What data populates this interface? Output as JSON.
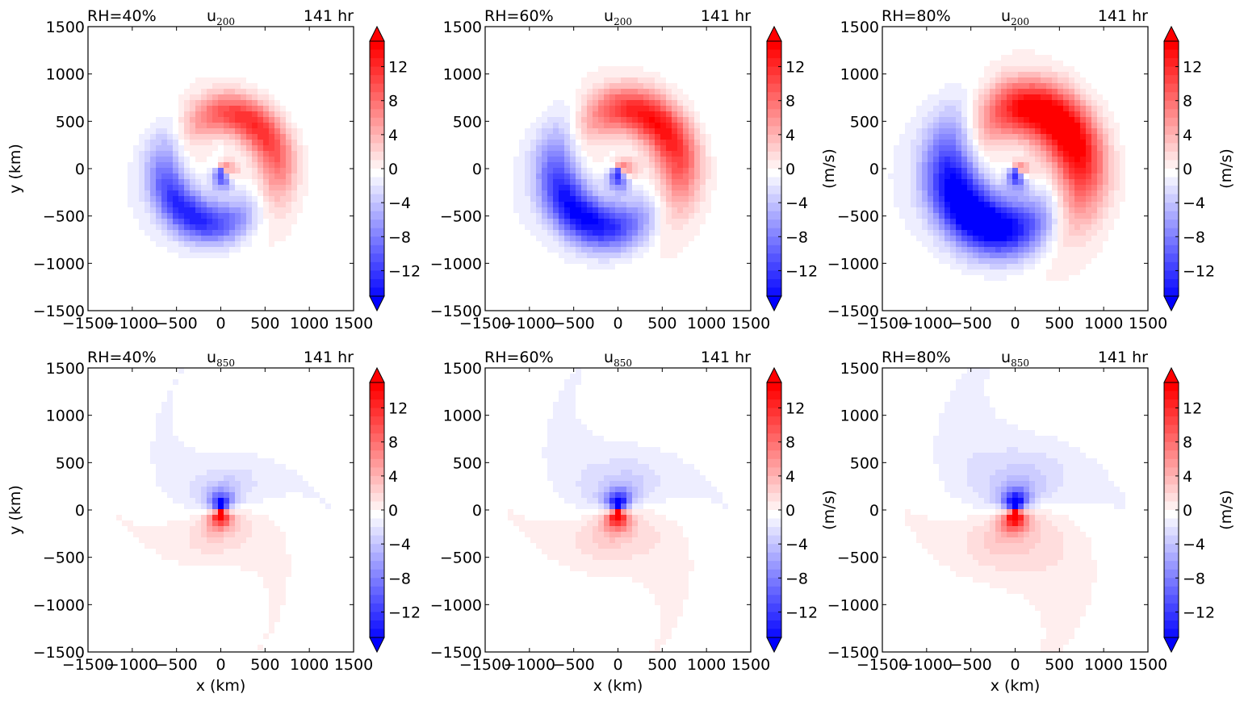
{
  "colors": {
    "negative_max": "#0000ff",
    "zero": "#ffffff",
    "positive_max": "#ff0000",
    "axes": "#000000"
  },
  "chart_data": [
    {
      "type": "heatmap",
      "title_left": "RH=40%",
      "title_var": "u",
      "title_sub": "200",
      "title_right": "141 hr",
      "xlabel": "",
      "ylabel": "y (km)",
      "colorbar_label": "",
      "xlim": [
        -1500,
        1500
      ],
      "ylim": [
        -1500,
        1500
      ],
      "xticks": [
        "−1500",
        "−1000",
        "−500",
        "0",
        "500",
        "1000",
        "1500"
      ],
      "yticks": [
        "−1500",
        "−1000",
        "−500",
        "0",
        "500",
        "1000",
        "1500"
      ],
      "colorbar_ticks": [
        "12",
        "8",
        "4",
        "0",
        "−4",
        "−8",
        "−12"
      ],
      "colorbar_range": [
        -15,
        15
      ],
      "units": "m/s",
      "field": {
        "pattern": "upper",
        "amplitude": 13,
        "jet_radius_km": 600,
        "jet_width_km": 230,
        "core_amplitude": 15,
        "core_radius_km": 130
      }
    },
    {
      "type": "heatmap",
      "title_left": "RH=60%",
      "title_var": "u",
      "title_sub": "200",
      "title_right": "141 hr",
      "xlabel": "",
      "ylabel": "",
      "colorbar_label": "(m/s)",
      "xlim": [
        -1500,
        1500
      ],
      "ylim": [
        -1500,
        1500
      ],
      "xticks": [
        "−1500",
        "−1000",
        "−500",
        "0",
        "500",
        "1000",
        "1500"
      ],
      "yticks": [
        "−1500",
        "−1000",
        "−500",
        "0",
        "500",
        "1000",
        "1500"
      ],
      "colorbar_ticks": [
        "12",
        "8",
        "4",
        "0",
        "−4",
        "−8",
        "−12"
      ],
      "colorbar_range": [
        -15,
        15
      ],
      "units": "m/s",
      "field": {
        "pattern": "upper",
        "amplitude": 15,
        "jet_radius_km": 650,
        "jet_width_km": 260,
        "core_amplitude": 16,
        "core_radius_km": 140
      }
    },
    {
      "type": "heatmap",
      "title_left": "RH=80%",
      "title_var": "u",
      "title_sub": "200",
      "title_right": "141 hr",
      "xlabel": "",
      "ylabel": "",
      "colorbar_label": "(m/s)",
      "xlim": [
        -1500,
        1500
      ],
      "ylim": [
        -1500,
        1500
      ],
      "xticks": [
        "−1500",
        "−1000",
        "−500",
        "0",
        "500",
        "1000",
        "1500"
      ],
      "yticks": [
        "−1500",
        "−1000",
        "−500",
        "0",
        "500",
        "1000",
        "1500"
      ],
      "colorbar_ticks": [
        "12",
        "8",
        "4",
        "0",
        "−4",
        "−8",
        "−12"
      ],
      "colorbar_range": [
        -15,
        15
      ],
      "units": "m/s",
      "field": {
        "pattern": "upper",
        "amplitude": 19,
        "jet_radius_km": 680,
        "jet_width_km": 320,
        "core_amplitude": 17,
        "core_radius_km": 120
      }
    },
    {
      "type": "heatmap",
      "title_left": "RH=40%",
      "title_var": "u",
      "title_sub": "850",
      "title_right": "141 hr",
      "xlabel": "x (km)",
      "ylabel": "y (km)",
      "colorbar_label": "",
      "xlim": [
        -1500,
        1500
      ],
      "ylim": [
        -1500,
        1500
      ],
      "xticks": [
        "−1500",
        "−1000",
        "−500",
        "0",
        "500",
        "1000",
        "1500"
      ],
      "yticks": [
        "−1500",
        "−1000",
        "−500",
        "0",
        "500",
        "1000",
        "1500"
      ],
      "colorbar_ticks": [
        "12",
        "8",
        "4",
        "0",
        "−4",
        "−8",
        "−12"
      ],
      "colorbar_range": [
        -15,
        15
      ],
      "units": "m/s",
      "field": {
        "pattern": "lower",
        "amplitude": 14,
        "core_radius_km": 160,
        "envelope_radius_km": 500
      }
    },
    {
      "type": "heatmap",
      "title_left": "RH=60%",
      "title_var": "u",
      "title_sub": "850",
      "title_right": "141 hr",
      "xlabel": "x (km)",
      "ylabel": "",
      "colorbar_label": "(m/s)",
      "xlim": [
        -1500,
        1500
      ],
      "ylim": [
        -1500,
        1500
      ],
      "xticks": [
        "−1500",
        "−1000",
        "−500",
        "0",
        "500",
        "1000",
        "1500"
      ],
      "yticks": [
        "−1500",
        "−1000",
        "−500",
        "0",
        "500",
        "1000",
        "1500"
      ],
      "colorbar_ticks": [
        "12",
        "8",
        "4",
        "0",
        "−4",
        "−8",
        "−12"
      ],
      "colorbar_range": [
        -15,
        15
      ],
      "units": "m/s",
      "field": {
        "pattern": "lower",
        "amplitude": 15,
        "core_radius_km": 170,
        "envelope_radius_km": 580
      }
    },
    {
      "type": "heatmap",
      "title_left": "RH=80%",
      "title_var": "u",
      "title_sub": "850",
      "title_right": "141 hr",
      "xlabel": "x (km)",
      "ylabel": "",
      "colorbar_label": "(m/s)",
      "xlim": [
        -1500,
        1500
      ],
      "ylim": [
        -1500,
        1500
      ],
      "xticks": [
        "−1500",
        "−1000",
        "−500",
        "0",
        "500",
        "1000",
        "1500"
      ],
      "yticks": [
        "−1500",
        "−1000",
        "−500",
        "0",
        "500",
        "1000",
        "1500"
      ],
      "colorbar_ticks": [
        "12",
        "8",
        "4",
        "0",
        "−4",
        "−8",
        "−12"
      ],
      "colorbar_range": [
        -15,
        15
      ],
      "units": "m/s",
      "field": {
        "pattern": "lower",
        "amplitude": 16,
        "core_radius_km": 180,
        "envelope_radius_km": 680
      }
    }
  ]
}
